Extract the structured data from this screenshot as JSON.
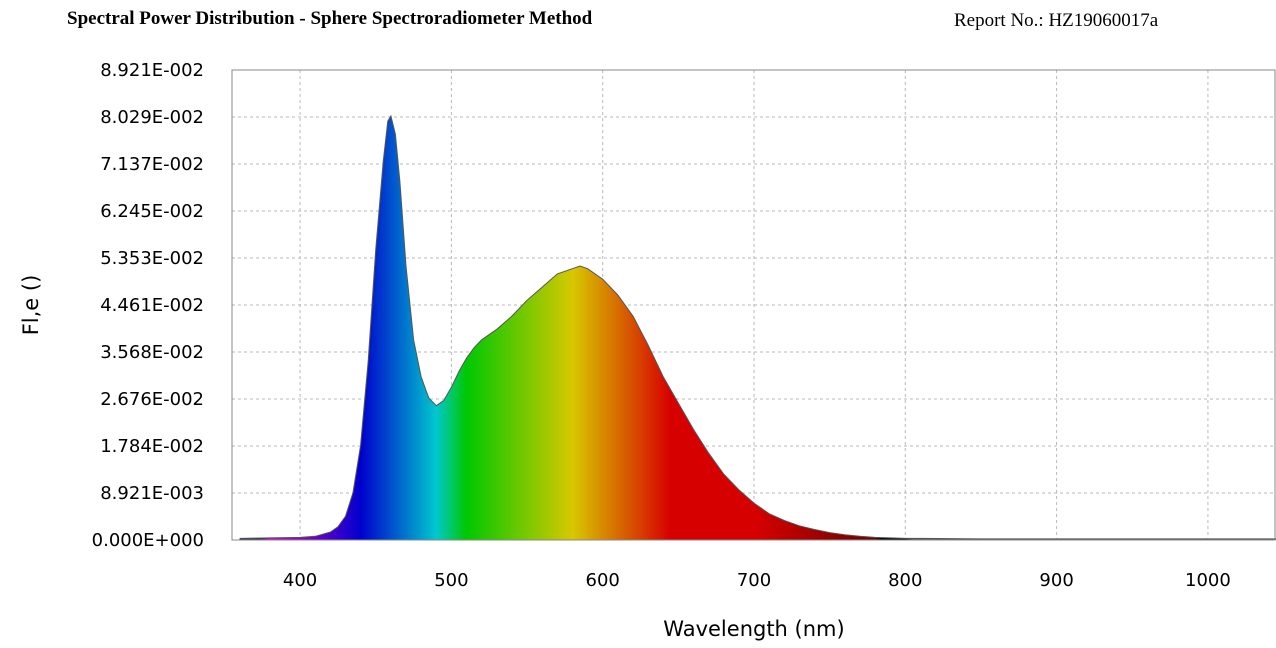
{
  "header": {
    "title": "Spectral Power Distribution - Sphere Spectroradiometer Method",
    "report": "Report No.: HZ19060017a"
  },
  "chart_data": {
    "type": "area",
    "title": "Spectral Power Distribution - Sphere Spectroradiometer Method",
    "xlabel": "Wavelength (nm)",
    "ylabel": "Fl,e ()",
    "xlim": [
      355,
      1045
    ],
    "ylim": [
      0,
      0.08921
    ],
    "x_ticks": [
      400,
      500,
      600,
      700,
      800,
      900,
      1000
    ],
    "x_tick_labels": [
      "400",
      "500",
      "600",
      "700",
      "800",
      "900",
      "1000"
    ],
    "y_ticks": [
      0,
      0.008921,
      0.01784,
      0.02676,
      0.03568,
      0.04461,
      0.05353,
      0.06245,
      0.07137,
      0.08029,
      0.08921
    ],
    "y_tick_labels": [
      "0.000E+000",
      "8.921E-003",
      "1.784E-002",
      "2.676E-002",
      "3.568E-002",
      "4.461E-002",
      "5.353E-002",
      "6.245E-002",
      "7.137E-002",
      "8.029E-002",
      "8.921E-002"
    ],
    "grid": true,
    "fill": "spectral wavelength colors",
    "x": [
      360,
      380,
      400,
      410,
      420,
      425,
      430,
      435,
      440,
      445,
      450,
      455,
      458,
      460,
      463,
      466,
      470,
      475,
      480,
      485,
      490,
      495,
      500,
      505,
      510,
      515,
      520,
      530,
      540,
      550,
      560,
      570,
      580,
      585,
      590,
      600,
      610,
      620,
      630,
      640,
      650,
      660,
      670,
      680,
      690,
      700,
      710,
      720,
      730,
      740,
      750,
      760,
      770,
      780,
      790,
      800,
      810,
      850,
      900,
      950,
      1000,
      1045
    ],
    "y": [
      0.0003,
      0.0004,
      0.0005,
      0.0007,
      0.0015,
      0.0025,
      0.0045,
      0.009,
      0.018,
      0.034,
      0.055,
      0.072,
      0.0795,
      0.0805,
      0.077,
      0.068,
      0.052,
      0.038,
      0.031,
      0.027,
      0.0255,
      0.0265,
      0.029,
      0.032,
      0.0345,
      0.0365,
      0.038,
      0.04,
      0.0425,
      0.0455,
      0.048,
      0.0505,
      0.0515,
      0.052,
      0.0515,
      0.0495,
      0.0465,
      0.0425,
      0.037,
      0.031,
      0.026,
      0.021,
      0.0165,
      0.0125,
      0.0095,
      0.007,
      0.005,
      0.0037,
      0.0027,
      0.002,
      0.0014,
      0.001,
      0.0007,
      0.0005,
      0.0004,
      0.0003,
      0.0003,
      0.0002,
      0.0002,
      0.0002,
      0.0002,
      0.0002
    ]
  }
}
